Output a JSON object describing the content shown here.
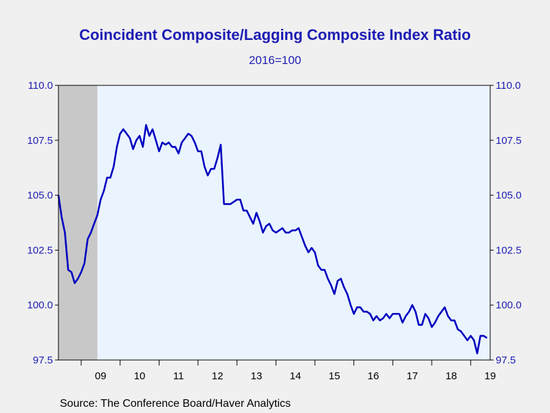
{
  "chart_data": {
    "type": "line",
    "title": "Coincident Composite/Lagging Composite Index Ratio",
    "subtitle": "2016=100",
    "source": "Source:  The Conference Board/Haver Analytics",
    "ylim": [
      97.5,
      110.0
    ],
    "yticks": [
      "110.0",
      "107.5",
      "105.0",
      "102.5",
      "100.0",
      "97.5"
    ],
    "xticks": [
      "09",
      "10",
      "11",
      "12",
      "13",
      "14",
      "15",
      "16",
      "17",
      "18",
      "19"
    ],
    "recession": {
      "start": "2008-06",
      "end": "2009-06"
    },
    "colors": {
      "line": "#0000c0",
      "plot_bg": "#eaf4ff",
      "recession": "#c8c8c8",
      "text": "#1c1cb4"
    },
    "series": [
      {
        "values": [
          [
            "2008-06",
            105.0
          ],
          [
            "2008-07",
            104.0
          ],
          [
            "2008-08",
            103.3
          ],
          [
            "2008-09",
            101.6
          ],
          [
            "2008-10",
            101.5
          ],
          [
            "2008-11",
            101.0
          ],
          [
            "2008-12",
            101.2
          ],
          [
            "2009-01",
            101.5
          ],
          [
            "2009-02",
            101.9
          ],
          [
            "2009-03",
            103.0
          ],
          [
            "2009-04",
            103.3
          ],
          [
            "2009-05",
            103.7
          ],
          [
            "2009-06",
            104.1
          ],
          [
            "2009-07",
            104.8
          ],
          [
            "2009-08",
            105.2
          ],
          [
            "2009-09",
            105.8
          ],
          [
            "2009-10",
            105.8
          ],
          [
            "2009-11",
            106.3
          ],
          [
            "2009-12",
            107.2
          ],
          [
            "2010-01",
            107.8
          ],
          [
            "2010-02",
            108.0
          ],
          [
            "2010-03",
            107.8
          ],
          [
            "2010-04",
            107.6
          ],
          [
            "2010-05",
            107.1
          ],
          [
            "2010-06",
            107.5
          ],
          [
            "2010-07",
            107.7
          ],
          [
            "2010-08",
            107.2
          ],
          [
            "2010-09",
            108.2
          ],
          [
            "2010-10",
            107.7
          ],
          [
            "2010-11",
            108.0
          ],
          [
            "2010-12",
            107.5
          ],
          [
            "2011-01",
            107.0
          ],
          [
            "2011-02",
            107.4
          ],
          [
            "2011-03",
            107.3
          ],
          [
            "2011-04",
            107.4
          ],
          [
            "2011-05",
            107.2
          ],
          [
            "2011-06",
            107.2
          ],
          [
            "2011-07",
            106.9
          ],
          [
            "2011-08",
            107.4
          ],
          [
            "2011-09",
            107.6
          ],
          [
            "2011-10",
            107.8
          ],
          [
            "2011-11",
            107.7
          ],
          [
            "2011-12",
            107.4
          ],
          [
            "2012-01",
            107.0
          ],
          [
            "2012-02",
            107.0
          ],
          [
            "2012-03",
            106.3
          ],
          [
            "2012-04",
            105.9
          ],
          [
            "2012-05",
            106.2
          ],
          [
            "2012-06",
            106.2
          ],
          [
            "2012-07",
            106.7
          ],
          [
            "2012-08",
            107.3
          ],
          [
            "2012-09",
            104.6
          ],
          [
            "2012-10",
            104.6
          ],
          [
            "2012-11",
            104.6
          ],
          [
            "2012-12",
            104.7
          ],
          [
            "2013-01",
            104.8
          ],
          [
            "2013-02",
            104.8
          ],
          [
            "2013-03",
            104.3
          ],
          [
            "2013-04",
            104.3
          ],
          [
            "2013-05",
            104.0
          ],
          [
            "2013-06",
            103.7
          ],
          [
            "2013-07",
            104.2
          ],
          [
            "2013-08",
            103.8
          ],
          [
            "2013-09",
            103.3
          ],
          [
            "2013-10",
            103.6
          ],
          [
            "2013-11",
            103.7
          ],
          [
            "2013-12",
            103.4
          ],
          [
            "2014-01",
            103.3
          ],
          [
            "2014-02",
            103.4
          ],
          [
            "2014-03",
            103.5
          ],
          [
            "2014-04",
            103.3
          ],
          [
            "2014-05",
            103.3
          ],
          [
            "2014-06",
            103.4
          ],
          [
            "2014-07",
            103.4
          ],
          [
            "2014-08",
            103.5
          ],
          [
            "2014-09",
            103.1
          ],
          [
            "2014-10",
            102.7
          ],
          [
            "2014-11",
            102.4
          ],
          [
            "2014-12",
            102.6
          ],
          [
            "2015-01",
            102.4
          ],
          [
            "2015-02",
            101.8
          ],
          [
            "2015-03",
            101.6
          ],
          [
            "2015-04",
            101.6
          ],
          [
            "2015-05",
            101.2
          ],
          [
            "2015-06",
            100.9
          ],
          [
            "2015-07",
            100.5
          ],
          [
            "2015-08",
            101.1
          ],
          [
            "2015-09",
            101.2
          ],
          [
            "2015-10",
            100.8
          ],
          [
            "2015-11",
            100.5
          ],
          [
            "2015-12",
            100.0
          ],
          [
            "2016-01",
            99.6
          ],
          [
            "2016-02",
            99.9
          ],
          [
            "2016-03",
            99.9
          ],
          [
            "2016-04",
            99.7
          ],
          [
            "2016-05",
            99.7
          ],
          [
            "2016-06",
            99.6
          ],
          [
            "2016-07",
            99.3
          ],
          [
            "2016-08",
            99.5
          ],
          [
            "2016-09",
            99.3
          ],
          [
            "2016-10",
            99.4
          ],
          [
            "2016-11",
            99.6
          ],
          [
            "2016-12",
            99.4
          ],
          [
            "2017-01",
            99.6
          ],
          [
            "2017-02",
            99.6
          ],
          [
            "2017-03",
            99.6
          ],
          [
            "2017-04",
            99.2
          ],
          [
            "2017-05",
            99.5
          ],
          [
            "2017-06",
            99.7
          ],
          [
            "2017-07",
            100.0
          ],
          [
            "2017-08",
            99.7
          ],
          [
            "2017-09",
            99.1
          ],
          [
            "2017-10",
            99.1
          ],
          [
            "2017-11",
            99.6
          ],
          [
            "2017-12",
            99.4
          ],
          [
            "2018-01",
            99.0
          ],
          [
            "2018-02",
            99.2
          ],
          [
            "2018-03",
            99.5
          ],
          [
            "2018-04",
            99.7
          ],
          [
            "2018-05",
            99.9
          ],
          [
            "2018-06",
            99.5
          ],
          [
            "2018-07",
            99.3
          ],
          [
            "2018-08",
            99.3
          ],
          [
            "2018-09",
            98.9
          ],
          [
            "2018-10",
            98.8
          ],
          [
            "2018-11",
            98.6
          ],
          [
            "2018-12",
            98.4
          ],
          [
            "2019-01",
            98.6
          ],
          [
            "2019-02",
            98.4
          ],
          [
            "2019-03",
            97.8
          ],
          [
            "2019-04",
            98.6
          ],
          [
            "2019-05",
            98.6
          ],
          [
            "2019-06",
            98.5
          ]
        ]
      }
    ]
  }
}
